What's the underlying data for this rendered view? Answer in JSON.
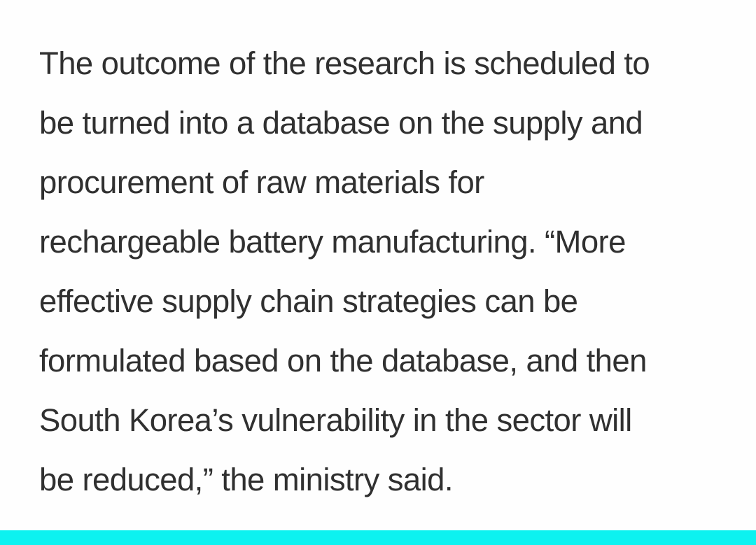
{
  "article": {
    "paragraph_lines": [
      "The outcome of the research is scheduled to",
      "be turned into a database on the supply and",
      "procurement of raw materials for",
      "rechargeable battery manufacturing. “More",
      "effective supply chain strategies can be",
      "formulated based on the database, and then",
      "South Korea’s vulnerability in the sector will",
      "be reduced,” the ministry said."
    ]
  },
  "colors": {
    "text": "#303030",
    "background": "#fefefe",
    "accent_bar": "#0df2f0"
  }
}
